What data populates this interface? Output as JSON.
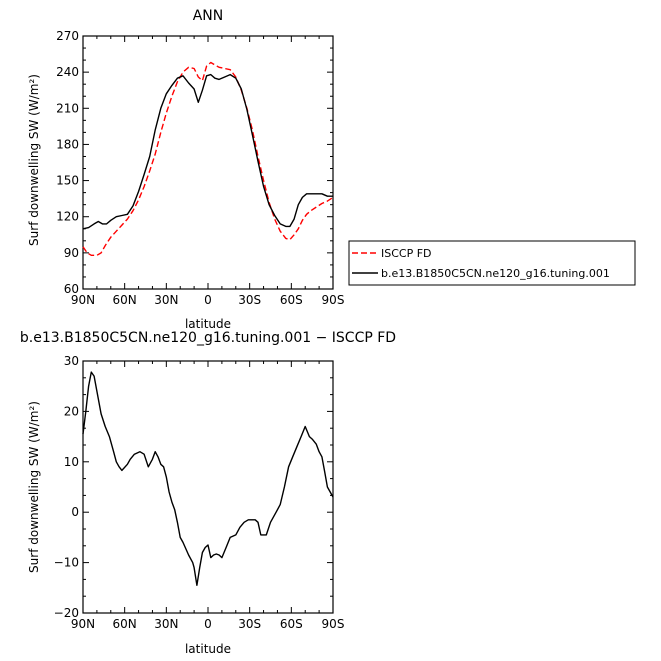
{
  "chart_data": [
    {
      "type": "line",
      "title": "ANN",
      "xlabel": "latitude",
      "ylabel": "Surf downwelling SW (W/m²)",
      "xlim": [
        90,
        -90
      ],
      "ylim": [
        60,
        270
      ],
      "xticks": [
        90,
        60,
        30,
        0,
        -30,
        -60,
        -90
      ],
      "xtick_labels": [
        "90N",
        "60N",
        "30N",
        "0",
        "30S",
        "60S",
        "90S"
      ],
      "yticks": [
        60,
        90,
        120,
        150,
        180,
        210,
        240,
        270
      ],
      "ytick_labels": [
        "60",
        "90",
        "120",
        "150",
        "180",
        "210",
        "240",
        "270"
      ],
      "legend_position": "right",
      "series": [
        {
          "name": "ISCCP FD",
          "color": "#ff0000",
          "dash": "dashed",
          "x": [
            90,
            87,
            84,
            80,
            77,
            74,
            70,
            66,
            62,
            58,
            54,
            50,
            46,
            42,
            38,
            34,
            30,
            26,
            22,
            18,
            14,
            10,
            7,
            4,
            1,
            -2,
            -5,
            -8,
            -12,
            -16,
            -20,
            -24,
            -28,
            -32,
            -36,
            -40,
            -44,
            -48,
            -52,
            -56,
            -59,
            -62,
            -65,
            -68,
            -71,
            -74,
            -78,
            -82,
            -86,
            -90
          ],
          "y": [
            95,
            90,
            88,
            88,
            90,
            96,
            103,
            108,
            113,
            118,
            125,
            134,
            145,
            158,
            172,
            190,
            206,
            220,
            232,
            240,
            244,
            243,
            236,
            233,
            245,
            248,
            246,
            244,
            243,
            242,
            236,
            225,
            210,
            192,
            170,
            150,
            132,
            118,
            108,
            102,
            101,
            105,
            110,
            117,
            122,
            125,
            128,
            131,
            133,
            136
          ]
        },
        {
          "name": "b.e13.B1850C5CN.ne120_g16.tuning.001",
          "color": "#000000",
          "dash": "solid",
          "x": [
            90,
            86,
            82,
            79,
            76,
            73,
            70,
            66,
            62,
            58,
            54,
            50,
            46,
            42,
            38,
            34,
            30,
            26,
            22,
            18,
            14,
            10,
            7,
            4,
            1,
            -2,
            -5,
            -8,
            -12,
            -16,
            -20,
            -24,
            -28,
            -32,
            -36,
            -40,
            -44,
            -48,
            -52,
            -56,
            -59,
            -62,
            -65,
            -68,
            -71,
            -74,
            -78,
            -82,
            -86,
            -90
          ],
          "y": [
            110,
            111,
            114,
            116,
            114,
            114,
            117,
            120,
            121,
            122,
            129,
            141,
            155,
            170,
            192,
            210,
            222,
            229,
            235,
            237,
            231,
            226,
            215,
            225,
            237,
            238,
            235,
            234,
            236,
            238,
            235,
            226,
            209,
            188,
            166,
            145,
            130,
            121,
            114,
            112,
            112,
            118,
            130,
            136,
            139,
            139,
            139,
            139,
            137,
            137
          ]
        }
      ]
    },
    {
      "type": "line",
      "title": "b.e13.B1850C5CN.ne120_g16.tuning.001 − ISCCP FD",
      "xlabel": "latitude",
      "ylabel": "Surf downwelling SW (W/m²)",
      "xlim": [
        90,
        -90
      ],
      "ylim": [
        -20,
        30
      ],
      "xticks": [
        90,
        60,
        30,
        0,
        -30,
        -60,
        -90
      ],
      "xtick_labels": [
        "90N",
        "60N",
        "30N",
        "0",
        "30S",
        "60S",
        "90S"
      ],
      "yticks": [
        -20,
        -10,
        0,
        10,
        20,
        30
      ],
      "ytick_labels": [
        "−20",
        "−10",
        "0",
        "10",
        "20",
        "30"
      ],
      "series": [
        {
          "color": "#000000",
          "dash": "solid",
          "x": [
            90,
            88,
            86,
            84,
            82,
            80,
            77,
            74,
            71,
            68,
            66,
            64,
            62,
            58,
            56,
            53,
            49,
            46,
            43,
            40,
            38,
            36,
            34,
            32,
            30,
            28,
            26,
            24,
            22,
            20,
            18,
            14,
            11,
            10,
            8,
            6,
            4,
            2,
            0,
            -2,
            -4,
            -6,
            -8,
            -10,
            -13,
            -16,
            -20,
            -23,
            -26,
            -29,
            -32,
            -34,
            -36,
            -38,
            -40,
            -42,
            -45,
            -49,
            -52,
            -55,
            -58,
            -61,
            -64,
            -67,
            -70,
            -73,
            -75,
            -78,
            -80,
            -82,
            -84,
            -86,
            -88,
            -90
          ],
          "y": [
            15.5,
            20,
            25,
            27.8,
            27,
            24,
            19.5,
            17,
            15,
            12,
            10,
            9,
            8.3,
            9.5,
            10.5,
            11.5,
            12,
            11.5,
            9,
            10.5,
            12,
            11,
            9.5,
            9,
            7,
            4,
            2,
            0.5,
            -2,
            -5,
            -6,
            -8.5,
            -10,
            -11,
            -14.5,
            -11,
            -8,
            -7,
            -6.5,
            -9,
            -8.5,
            -8.3,
            -8.5,
            -9,
            -7,
            -5,
            -4.5,
            -3,
            -2,
            -1.5,
            -1.5,
            -1.5,
            -2,
            -4.5,
            -4.5,
            -4.5,
            -2,
            0,
            1.5,
            5,
            9,
            11,
            13,
            15,
            17,
            15,
            14.5,
            13.5,
            12,
            11,
            8,
            5,
            4,
            3
          ]
        }
      ]
    }
  ]
}
